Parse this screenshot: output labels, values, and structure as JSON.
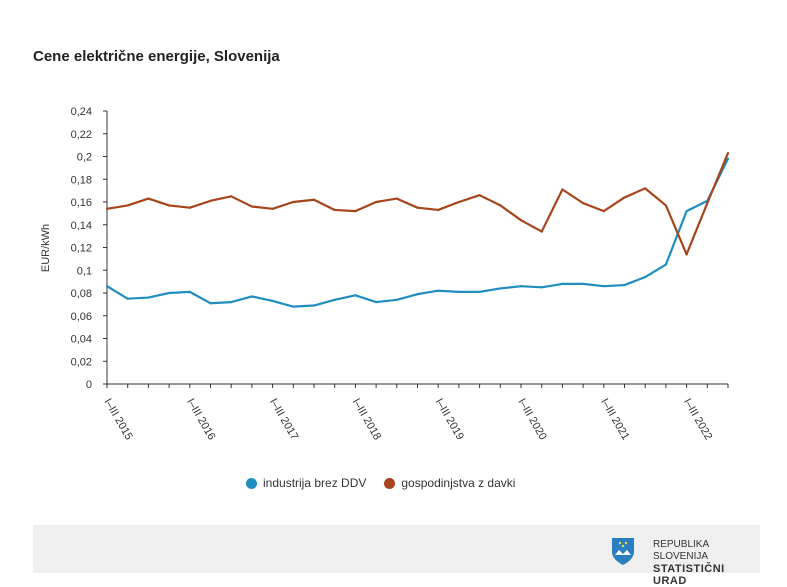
{
  "chart_data": {
    "type": "line",
    "title": "Cene električne energije, Slovenija",
    "xlabel": "",
    "ylabel": "EUR/kWh",
    "ylim": [
      0,
      0.24
    ],
    "yticks": [
      "0",
      "0,02",
      "0,04",
      "0,06",
      "0,08",
      "0,1",
      "0,12",
      "0,14",
      "0,16",
      "0,18",
      "0,2",
      "0,22",
      "0,24"
    ],
    "x_tick_labels": [
      "I–III 2015",
      "I–III 2016",
      "I–III 2017",
      "I–III 2018",
      "I–III 2019",
      "I–III 2020",
      "I–III 2021",
      "I–III 2022"
    ],
    "categories": [
      "2015Q1",
      "2015Q2",
      "2015Q3",
      "2015Q4",
      "2016Q1",
      "2016Q2",
      "2016Q3",
      "2016Q4",
      "2017Q1",
      "2017Q2",
      "2017Q3",
      "2017Q4",
      "2018Q1",
      "2018Q2",
      "2018Q3",
      "2018Q4",
      "2019Q1",
      "2019Q2",
      "2019Q3",
      "2019Q4",
      "2020Q1",
      "2020Q2",
      "2020Q3",
      "2020Q4",
      "2021Q1",
      "2021Q2",
      "2021Q3",
      "2021Q4",
      "2022Q1",
      "2022Q2",
      "2022Q3"
    ],
    "grid": false,
    "legend_position": "bottom",
    "series": [
      {
        "name": "industrija brez DDV",
        "color": "#1f8ebf",
        "values": [
          0.086,
          0.075,
          0.076,
          0.08,
          0.081,
          0.071,
          0.072,
          0.077,
          0.073,
          0.068,
          0.069,
          0.074,
          0.078,
          0.072,
          0.074,
          0.079,
          0.082,
          0.081,
          0.081,
          0.084,
          0.086,
          0.085,
          0.088,
          0.088,
          0.086,
          0.087,
          0.094,
          0.105,
          0.152,
          0.161,
          0.198
        ]
      },
      {
        "name": "gospodinjstva z davki",
        "color": "#a7441b",
        "values": [
          0.154,
          0.157,
          0.163,
          0.157,
          0.155,
          0.161,
          0.165,
          0.156,
          0.154,
          0.16,
          0.162,
          0.153,
          0.152,
          0.16,
          0.163,
          0.155,
          0.153,
          0.16,
          0.166,
          0.157,
          0.144,
          0.134,
          0.171,
          0.159,
          0.152,
          0.164,
          0.172,
          0.157,
          0.114,
          0.159,
          0.203
        ]
      }
    ]
  },
  "footer": {
    "line1": "REPUBLIKA SLOVENIJA",
    "line2": "STATISTIČNI URAD"
  }
}
